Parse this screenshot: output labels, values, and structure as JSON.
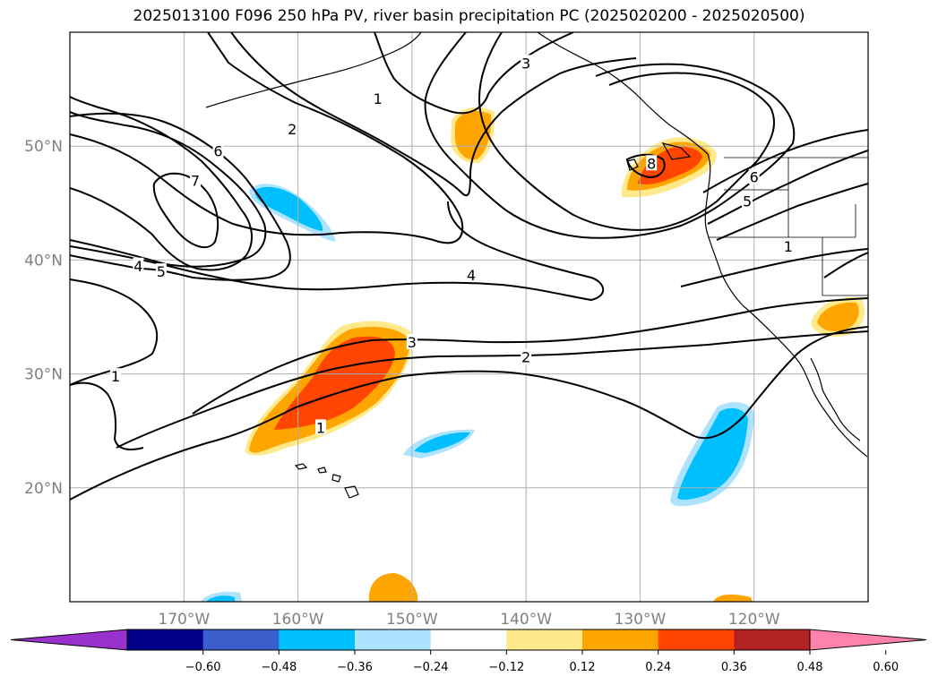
{
  "title": "2025013100 F096 250 hPa PV, river basin precipitation PC (2025020200 - 2025020500)",
  "map": {
    "lon_range": [
      -180,
      -110
    ],
    "lat_range": [
      10,
      60
    ],
    "lat_labels": [
      {
        "lat": 50,
        "text": "50°N"
      },
      {
        "lat": 40,
        "text": "40°N"
      },
      {
        "lat": 30,
        "text": "30°N"
      },
      {
        "lat": 20,
        "text": "20°N"
      }
    ],
    "lon_labels": [
      {
        "lon": -170,
        "text": "170°W"
      },
      {
        "lon": -160,
        "text": "160°W"
      },
      {
        "lon": -150,
        "text": "150°W"
      },
      {
        "lon": -140,
        "text": "140°W"
      },
      {
        "lon": -130,
        "text": "130°W"
      },
      {
        "lon": -120,
        "text": "120°W"
      }
    ],
    "contour_labels": [
      {
        "text": "1",
        "lon": -176,
        "lat": 29.8
      },
      {
        "text": "4",
        "lon": -174,
        "lat": 39.5
      },
      {
        "text": "5",
        "lon": -172,
        "lat": 39.0
      },
      {
        "text": "7",
        "lon": -169,
        "lat": 47.0
      },
      {
        "text": "6",
        "lon": -167,
        "lat": 49.6
      },
      {
        "text": "2",
        "lon": -160.5,
        "lat": 51.5
      },
      {
        "text": "1",
        "lon": -153,
        "lat": 54.2
      },
      {
        "text": "3",
        "lon": -140,
        "lat": 57.3
      },
      {
        "text": "4",
        "lon": -144.8,
        "lat": 38.7
      },
      {
        "text": "3",
        "lon": -150,
        "lat": 32.8
      },
      {
        "text": "2",
        "lon": -140,
        "lat": 31.5
      },
      {
        "text": "1",
        "lon": -158,
        "lat": 25.3
      },
      {
        "text": "8",
        "lon": -129,
        "lat": 48.5
      },
      {
        "text": "6",
        "lon": -120,
        "lat": 47.3
      },
      {
        "text": "5",
        "lon": -120.6,
        "lat": 45.2
      },
      {
        "text": "1",
        "lon": -117,
        "lat": 41.2
      }
    ],
    "fill_colors": {
      "pos1": "#ffe98b",
      "pos2": "#ffa500",
      "pos3": "#ff4500",
      "neg1": "#aee3ff",
      "neg2": "#00bfff"
    }
  },
  "colorbar": {
    "ticks": [
      "−0.60",
      "−0.48",
      "−0.36",
      "−0.24",
      "−0.12",
      "0.12",
      "0.24",
      "0.36",
      "0.48",
      "0.60"
    ],
    "colors": [
      "#9932cc",
      "#00008b",
      "#3a5fcd",
      "#00bfff",
      "#aee3ff",
      "#ffffff",
      "#ffe98b",
      "#ffa500",
      "#ff4500",
      "#b22222",
      "#ff82ab"
    ]
  }
}
